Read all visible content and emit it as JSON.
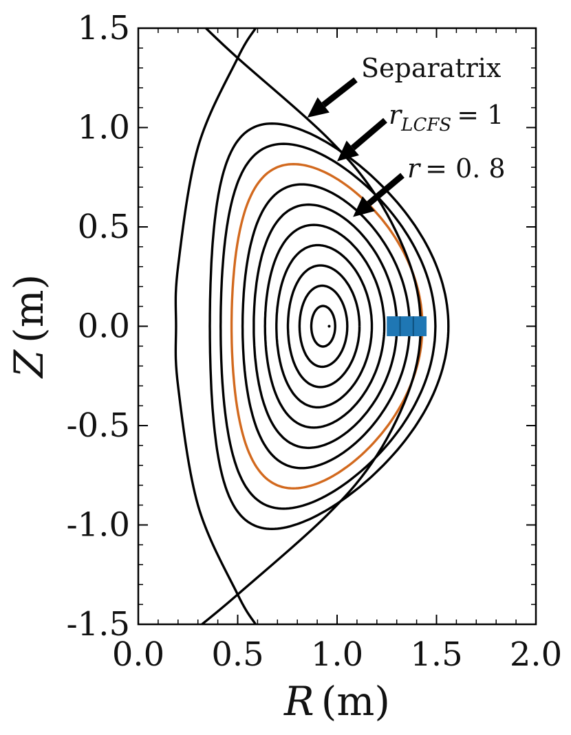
{
  "chart_data": {
    "type": "line",
    "title": "",
    "xlabel": "(m)",
    "xlabel_symbol": "R",
    "ylabel": "(m)",
    "ylabel_symbol": "Z",
    "xlim": [
      0.0,
      2.0
    ],
    "ylim": [
      -1.5,
      1.5
    ],
    "x_ticks": [
      "0.0",
      "0.5",
      "1.0",
      "1.5",
      "2.0"
    ],
    "y_ticks": [
      "1.5",
      "1.0",
      "0.5",
      "0.0",
      "-0.5",
      "-1.0",
      "-1.5"
    ],
    "grid": false,
    "magnetic_axis": {
      "R": 0.96,
      "Z": 0.0
    },
    "flux_surfaces": {
      "r_values": [
        0.1,
        0.2,
        0.3,
        0.4,
        0.5,
        0.6,
        0.7,
        0.8,
        0.9,
        1.0
      ],
      "highlight_r": 0.8,
      "shape": {
        "R0": 0.96,
        "minor_radius": 0.6,
        "triangularity": 0.48,
        "elongation": 1.7,
        "shift_at_edge": 0.15
      },
      "line_color": "#000000",
      "highlight_color": "#D2691E"
    },
    "separatrix": {
      "x_points_Z": [
        1.35,
        -1.35
      ],
      "points": [
        {
          "R": 0.34,
          "Z": 1.5
        },
        {
          "R": 0.5,
          "Z": 1.35
        },
        {
          "R": 0.95,
          "Z": 0.95
        },
        {
          "R": 1.2,
          "Z": 0.65
        },
        {
          "R": 1.37,
          "Z": 0.3
        },
        {
          "R": 1.42,
          "Z": 0.0
        },
        {
          "R": 1.37,
          "Z": -0.3
        },
        {
          "R": 1.2,
          "Z": -0.65
        },
        {
          "R": 0.95,
          "Z": -0.95
        },
        {
          "R": 0.5,
          "Z": -1.35
        },
        {
          "R": 0.32,
          "Z": -1.5
        }
      ],
      "inner_legs": [
        [
          {
            "R": 0.59,
            "Z": 1.5
          },
          {
            "R": 0.5,
            "Z": 1.35
          },
          {
            "R": 0.3,
            "Z": 0.9
          },
          {
            "R": 0.2,
            "Z": 0.3
          },
          {
            "R": 0.19,
            "Z": 0.0
          },
          {
            "R": 0.2,
            "Z": -0.3
          },
          {
            "R": 0.3,
            "Z": -0.9
          },
          {
            "R": 0.5,
            "Z": -1.35
          },
          {
            "R": 0.59,
            "Z": -1.5
          }
        ]
      ]
    },
    "diagnostic_box": {
      "R_min": 1.25,
      "R_max": 1.45,
      "Z_min": -0.05,
      "Z_max": 0.05,
      "color": "#1F77B4",
      "divisions": 3
    },
    "annotations": [
      {
        "text": "Separatrix",
        "target": {
          "R": 0.85,
          "Z": 1.05
        }
      },
      {
        "symbol": "r",
        "subscript": "LCFS",
        "rest": "= 1",
        "target": {
          "R": 1.0,
          "Z": 0.83
        }
      },
      {
        "symbol": "r",
        "rest": "= 0. 8",
        "target": {
          "R": 1.08,
          "Z": 0.55
        }
      }
    ],
    "colors": {
      "axis": "#000000",
      "surface": "#000000",
      "highlight": "#D2691E",
      "box": "#1F77B4"
    }
  }
}
